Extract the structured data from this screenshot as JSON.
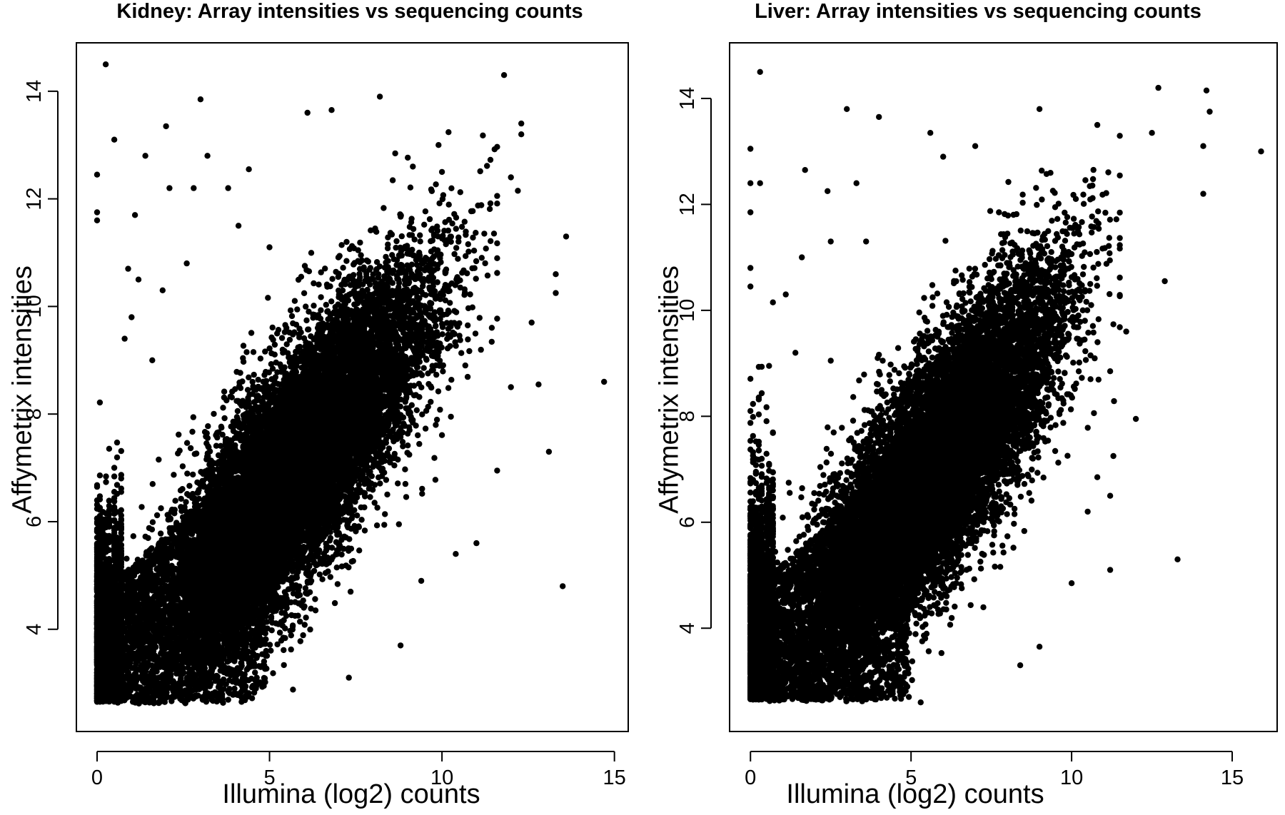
{
  "chart_data": [
    {
      "type": "scatter",
      "title": "Kidney: Array intensities vs sequencing counts",
      "xlabel": "Illumina (log2) counts",
      "ylabel": "Affymetrix intensities",
      "xlim": [
        -0.6,
        15.4
      ],
      "ylim": [
        2.1,
        14.9
      ],
      "xticks": [
        0,
        5,
        10,
        15
      ],
      "yticks": [
        4,
        6,
        8,
        10,
        12,
        14
      ],
      "grid": false,
      "marker_color": "#000000",
      "points": [
        [
          0.25,
          14.5
        ],
        [
          3.0,
          13.85
        ],
        [
          8.2,
          13.9
        ],
        [
          11.8,
          14.3
        ],
        [
          2.0,
          13.35
        ],
        [
          0.5,
          13.1
        ],
        [
          1.4,
          12.8
        ],
        [
          3.2,
          12.8
        ],
        [
          2.1,
          12.2
        ],
        [
          2.8,
          12.2
        ],
        [
          0.0,
          12.45
        ],
        [
          0.0,
          11.75
        ],
        [
          0.0,
          11.6
        ],
        [
          1.1,
          11.7
        ],
        [
          4.1,
          11.5
        ],
        [
          3.8,
          12.2
        ],
        [
          4.4,
          12.55
        ],
        [
          5.0,
          11.1
        ],
        [
          6.1,
          13.6
        ],
        [
          6.8,
          13.65
        ],
        [
          9.9,
          13.0
        ],
        [
          10.0,
          12.5
        ],
        [
          12.0,
          12.4
        ],
        [
          12.2,
          12.15
        ],
        [
          12.3,
          13.4
        ],
        [
          12.3,
          13.2
        ],
        [
          13.6,
          11.3
        ],
        [
          13.3,
          10.6
        ],
        [
          13.3,
          10.25
        ],
        [
          12.6,
          9.7
        ],
        [
          14.7,
          8.6
        ],
        [
          12.8,
          8.55
        ],
        [
          13.1,
          7.3
        ],
        [
          13.5,
          4.8
        ],
        [
          12.0,
          8.5
        ],
        [
          11.6,
          6.95
        ],
        [
          11.0,
          5.6
        ],
        [
          10.4,
          5.4
        ],
        [
          9.4,
          4.9
        ],
        [
          8.8,
          3.7
        ],
        [
          7.3,
          3.1
        ],
        [
          1.6,
          9.0
        ],
        [
          0.9,
          10.7
        ],
        [
          1.2,
          10.5
        ],
        [
          2.6,
          10.8
        ],
        [
          1.0,
          9.8
        ],
        [
          0.8,
          9.4
        ],
        [
          1.9,
          10.3
        ]
      ]
    },
    {
      "type": "scatter",
      "title": "Liver: Array intensities vs sequencing counts",
      "xlabel": "Illumina (log2) counts",
      "ylabel": "Affymetrix intensities",
      "xlim": [
        -0.65,
        16.4
      ],
      "ylim": [
        2.05,
        15.05
      ],
      "xticks": [
        0,
        5,
        10,
        15
      ],
      "yticks": [
        4,
        6,
        8,
        10,
        12,
        14
      ],
      "grid": false,
      "marker_color": "#000000",
      "points": [
        [
          0.3,
          14.5
        ],
        [
          3.0,
          13.8
        ],
        [
          4.0,
          13.65
        ],
        [
          9.0,
          13.8
        ],
        [
          12.7,
          14.2
        ],
        [
          14.2,
          14.15
        ],
        [
          15.9,
          13.0
        ],
        [
          14.3,
          13.75
        ],
        [
          14.1,
          13.1
        ],
        [
          14.1,
          12.2
        ],
        [
          0.0,
          13.05
        ],
        [
          0.0,
          12.4
        ],
        [
          0.3,
          12.4
        ],
        [
          0.0,
          11.85
        ],
        [
          1.7,
          12.65
        ],
        [
          2.4,
          12.25
        ],
        [
          3.3,
          12.4
        ],
        [
          2.5,
          11.3
        ],
        [
          3.6,
          11.3
        ],
        [
          5.6,
          13.35
        ],
        [
          6.0,
          12.9
        ],
        [
          7.0,
          13.1
        ],
        [
          10.8,
          13.5
        ],
        [
          12.5,
          13.35
        ],
        [
          12.9,
          10.55
        ],
        [
          11.7,
          9.6
        ],
        [
          12.0,
          7.95
        ],
        [
          11.2,
          8.85
        ],
        [
          11.3,
          7.25
        ],
        [
          11.2,
          6.5
        ],
        [
          10.8,
          6.85
        ],
        [
          10.5,
          6.2
        ],
        [
          11.2,
          5.1
        ],
        [
          13.3,
          5.3
        ],
        [
          10.0,
          4.85
        ],
        [
          9.0,
          3.65
        ],
        [
          8.4,
          3.3
        ],
        [
          5.3,
          2.6
        ],
        [
          0.0,
          10.8
        ],
        [
          0.0,
          10.45
        ],
        [
          1.1,
          10.3
        ],
        [
          1.6,
          11.0
        ],
        [
          0.7,
          10.15
        ],
        [
          1.4,
          9.2
        ],
        [
          2.5,
          9.05
        ]
      ]
    }
  ]
}
